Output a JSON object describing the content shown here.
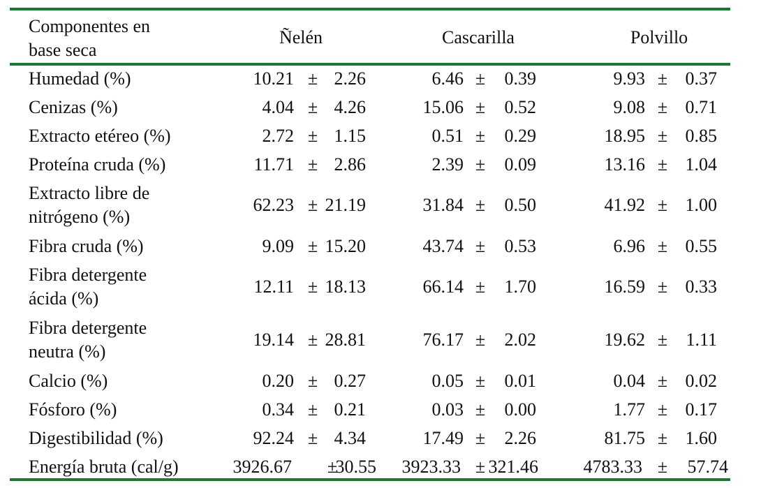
{
  "table": {
    "header": {
      "component_line1": "Componentes en",
      "component_line2": "base seca",
      "col1": "Ñelén",
      "col2": "Cascarilla",
      "col3": "Polvillo"
    },
    "pm_symbol": "±",
    "rows": [
      {
        "label": [
          "Humedad (%)"
        ],
        "values": [
          [
            "10.21",
            "2.26"
          ],
          [
            "6.46",
            "0.39"
          ],
          [
            "9.93",
            "0.37"
          ]
        ]
      },
      {
        "label": [
          "Cenizas (%)"
        ],
        "values": [
          [
            "4.04",
            "4.26"
          ],
          [
            "15.06",
            "0.52"
          ],
          [
            "9.08",
            "0.71"
          ]
        ]
      },
      {
        "label": [
          "Extracto etéreo (%)"
        ],
        "values": [
          [
            "2.72",
            "1.15"
          ],
          [
            "0.51",
            "0.29"
          ],
          [
            "18.95",
            "0.85"
          ]
        ]
      },
      {
        "label": [
          "Proteína cruda (%)"
        ],
        "values": [
          [
            "11.71",
            "2.86"
          ],
          [
            "2.39",
            "0.09"
          ],
          [
            "13.16",
            "1.04"
          ]
        ]
      },
      {
        "label": [
          "Extracto libre de",
          "nitrógeno (%)"
        ],
        "values": [
          [
            "62.23",
            "21.19"
          ],
          [
            "31.84",
            "0.50"
          ],
          [
            "41.92",
            "1.00"
          ]
        ]
      },
      {
        "label": [
          "Fibra cruda (%)"
        ],
        "values": [
          [
            "9.09",
            "15.20"
          ],
          [
            "43.74",
            "0.53"
          ],
          [
            "6.96",
            "0.55"
          ]
        ]
      },
      {
        "label": [
          "Fibra detergente",
          "ácida (%)"
        ],
        "values": [
          [
            "12.11",
            "18.13"
          ],
          [
            "66.14",
            "1.70"
          ],
          [
            "16.59",
            "0.33"
          ]
        ]
      },
      {
        "label": [
          "Fibra detergente",
          "neutra (%)"
        ],
        "values": [
          [
            "19.14",
            "28.81"
          ],
          [
            "76.17",
            "2.02"
          ],
          [
            "19.62",
            "1.11"
          ]
        ]
      },
      {
        "label": [
          "Calcio (%)"
        ],
        "values": [
          [
            "0.20",
            "0.27"
          ],
          [
            "0.05",
            "0.01"
          ],
          [
            "0.04",
            "0.02"
          ]
        ]
      },
      {
        "label": [
          "Fósforo (%)"
        ],
        "values": [
          [
            "0.34",
            "0.21"
          ],
          [
            "0.03",
            "0.00"
          ],
          [
            "1.77",
            "0.17"
          ]
        ]
      },
      {
        "label": [
          "Digestibilidad (%)"
        ],
        "values": [
          [
            "92.24",
            "4.34"
          ],
          [
            "17.49",
            "2.26"
          ],
          [
            "81.75",
            "1.60"
          ]
        ]
      },
      {
        "label": [
          "Energía bruta (cal/g)"
        ],
        "values": [
          [
            "3926.67",
            "30.55"
          ],
          [
            "3923.33",
            "321.46"
          ],
          [
            "4783.33",
            "57.74"
          ]
        ]
      }
    ]
  }
}
